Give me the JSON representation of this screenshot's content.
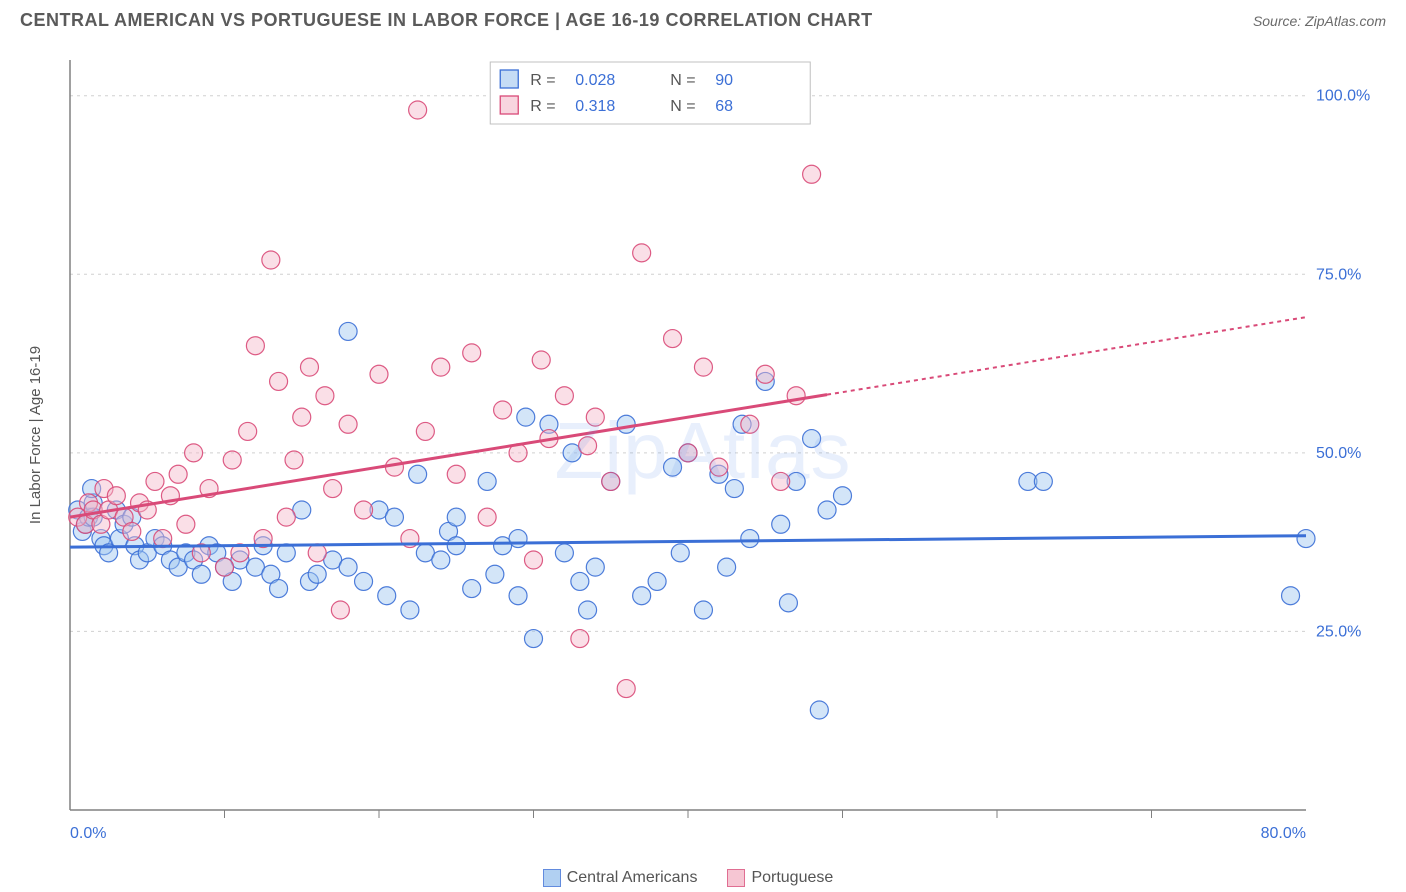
{
  "title": "CENTRAL AMERICAN VS PORTUGUESE IN LABOR FORCE | AGE 16-19 CORRELATION CHART",
  "source": "Source: ZipAtlas.com",
  "watermark": "ZipAtlas",
  "y_axis_label": "In Labor Force | Age 16-19",
  "chart": {
    "type": "scatter",
    "background_color": "#ffffff",
    "grid_color": "#d0d0d0",
    "axis_color": "#808080",
    "tick_label_color": "#3b6fd6",
    "tick_fontsize": 16,
    "xlim": [
      0,
      80
    ],
    "ylim": [
      0,
      105
    ],
    "x_ticks": [
      0,
      80
    ],
    "x_tick_labels": [
      "0.0%",
      "80.0%"
    ],
    "y_ticks": [
      25,
      50,
      75,
      100
    ],
    "y_tick_labels": [
      "25.0%",
      "50.0%",
      "75.0%",
      "100.0%"
    ],
    "x_minor_lines": [
      10,
      20,
      30,
      40,
      50,
      60,
      70
    ],
    "y_minor_lines": [
      0,
      25,
      50,
      75,
      100
    ],
    "marker_radius": 9,
    "marker_opacity": 0.45,
    "marker_stroke_width": 1.2,
    "trend_line_width": 3,
    "trend_dash": "4,4"
  },
  "series": [
    {
      "name": "Central Americans",
      "fill": "#9ec5ef",
      "stroke": "#3b6fd6",
      "R": "0.028",
      "N": "90",
      "trend": {
        "x1": 0,
        "y1": 36.8,
        "x2": 80,
        "y2": 38.4,
        "solid_until_x": 80
      },
      "points": [
        [
          0.5,
          42
        ],
        [
          0.8,
          39
        ],
        [
          1,
          40
        ],
        [
          1.2,
          41
        ],
        [
          1.5,
          43
        ],
        [
          1.5,
          41
        ],
        [
          1.4,
          45
        ],
        [
          2,
          38
        ],
        [
          2.2,
          37
        ],
        [
          2.5,
          36
        ],
        [
          3,
          42
        ],
        [
          3.2,
          38
        ],
        [
          3.5,
          40
        ],
        [
          4,
          41
        ],
        [
          4.2,
          37
        ],
        [
          4.5,
          35
        ],
        [
          5,
          36
        ],
        [
          5.5,
          38
        ],
        [
          6,
          37
        ],
        [
          6.5,
          35
        ],
        [
          7,
          34
        ],
        [
          7.5,
          36
        ],
        [
          8,
          35
        ],
        [
          8.5,
          33
        ],
        [
          9,
          37
        ],
        [
          9.5,
          36
        ],
        [
          10,
          34
        ],
        [
          10.5,
          32
        ],
        [
          11,
          35
        ],
        [
          12,
          34
        ],
        [
          12.5,
          37
        ],
        [
          13,
          33
        ],
        [
          13.5,
          31
        ],
        [
          14,
          36
        ],
        [
          15,
          42
        ],
        [
          15.5,
          32
        ],
        [
          16,
          33
        ],
        [
          17,
          35
        ],
        [
          18,
          34
        ],
        [
          18,
          67
        ],
        [
          19,
          32
        ],
        [
          20,
          42
        ],
        [
          20.5,
          30
        ],
        [
          21,
          41
        ],
        [
          22,
          28
        ],
        [
          22.5,
          47
        ],
        [
          23,
          36
        ],
        [
          24,
          35
        ],
        [
          24.5,
          39
        ],
        [
          25,
          37
        ],
        [
          25,
          41
        ],
        [
          26,
          31
        ],
        [
          27,
          46
        ],
        [
          27.5,
          33
        ],
        [
          28,
          37
        ],
        [
          29,
          30
        ],
        [
          29,
          38
        ],
        [
          29.5,
          55
        ],
        [
          30,
          24
        ],
        [
          31,
          54
        ],
        [
          32,
          36
        ],
        [
          32.5,
          50
        ],
        [
          33,
          32
        ],
        [
          33.5,
          28
        ],
        [
          34,
          34
        ],
        [
          35,
          46
        ],
        [
          36,
          54
        ],
        [
          37,
          30
        ],
        [
          38,
          32
        ],
        [
          39,
          48
        ],
        [
          39.5,
          36
        ],
        [
          40,
          50
        ],
        [
          41,
          28
        ],
        [
          42,
          47
        ],
        [
          42.5,
          34
        ],
        [
          43,
          45
        ],
        [
          43.5,
          54
        ],
        [
          44,
          38
        ],
        [
          45,
          60
        ],
        [
          46,
          40
        ],
        [
          46.5,
          29
        ],
        [
          47,
          46
        ],
        [
          48,
          52
        ],
        [
          48.5,
          14
        ],
        [
          49,
          42
        ],
        [
          50,
          44
        ],
        [
          62,
          46
        ],
        [
          63,
          46
        ],
        [
          79,
          30
        ],
        [
          80,
          38
        ]
      ]
    },
    {
      "name": "Portuguese",
      "fill": "#f4b9c9",
      "stroke": "#d94a78",
      "R": "0.318",
      "N": "68",
      "trend": {
        "x1": 0,
        "y1": 41,
        "x2": 80,
        "y2": 69,
        "solid_until_x": 49
      },
      "points": [
        [
          0.5,
          41
        ],
        [
          1,
          40
        ],
        [
          1.2,
          43
        ],
        [
          1.5,
          42
        ],
        [
          2,
          40
        ],
        [
          2.2,
          45
        ],
        [
          2.5,
          42
        ],
        [
          3,
          44
        ],
        [
          3.5,
          41
        ],
        [
          4,
          39
        ],
        [
          4.5,
          43
        ],
        [
          5,
          42
        ],
        [
          5.5,
          46
        ],
        [
          6,
          38
        ],
        [
          6.5,
          44
        ],
        [
          7,
          47
        ],
        [
          7.5,
          40
        ],
        [
          8,
          50
        ],
        [
          8.5,
          36
        ],
        [
          9,
          45
        ],
        [
          10,
          34
        ],
        [
          10.5,
          49
        ],
        [
          11,
          36
        ],
        [
          11.5,
          53
        ],
        [
          12,
          65
        ],
        [
          12.5,
          38
        ],
        [
          13,
          77
        ],
        [
          13.5,
          60
        ],
        [
          14,
          41
        ],
        [
          14.5,
          49
        ],
        [
          15,
          55
        ],
        [
          15.5,
          62
        ],
        [
          16,
          36
        ],
        [
          16.5,
          58
        ],
        [
          17,
          45
        ],
        [
          17.5,
          28
        ],
        [
          18,
          54
        ],
        [
          19,
          42
        ],
        [
          20,
          61
        ],
        [
          21,
          48
        ],
        [
          22,
          38
        ],
        [
          22.5,
          98
        ],
        [
          23,
          53
        ],
        [
          24,
          62
        ],
        [
          25,
          47
        ],
        [
          26,
          64
        ],
        [
          27,
          41
        ],
        [
          28,
          56
        ],
        [
          29,
          50
        ],
        [
          30,
          35
        ],
        [
          30.5,
          63
        ],
        [
          31,
          52
        ],
        [
          32,
          58
        ],
        [
          33,
          24
        ],
        [
          33.5,
          51
        ],
        [
          34,
          55
        ],
        [
          35,
          46
        ],
        [
          36,
          17
        ],
        [
          37,
          78
        ],
        [
          39,
          66
        ],
        [
          40,
          50
        ],
        [
          41,
          62
        ],
        [
          42,
          48
        ],
        [
          44,
          54
        ],
        [
          45,
          61
        ],
        [
          46,
          46
        ],
        [
          47,
          58
        ],
        [
          48,
          89
        ]
      ]
    }
  ],
  "stat_legend": {
    "border_color": "#c0c0c0",
    "bg": "#ffffff",
    "label_color": "#555555",
    "value_color": "#3b6fd6",
    "fontsize": 16
  },
  "bottom_legend": {
    "fontsize": 16
  }
}
